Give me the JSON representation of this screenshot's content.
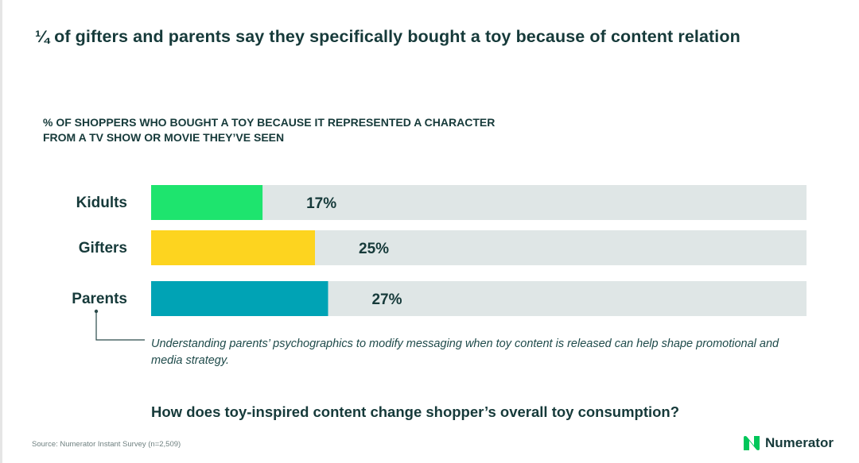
{
  "title": "¼ of gifters and parents say they specifically bought a toy because of content relation",
  "annotation": "Understanding parents’ psychographics to modify messaging when toy content is released can help shape promotional and media strategy.",
  "question": "How does toy-inspired content change shopper’s overall toy consumption?",
  "source": "Source: Numerator Instant Survey (n=2,509)",
  "brand": {
    "name": "Numerator",
    "icon": "numerator-logo-icon",
    "color": "#00c65a"
  },
  "colors": {
    "track": "#dfe6e6",
    "text": "#163a3a"
  },
  "chart_data": {
    "type": "bar",
    "orientation": "horizontal",
    "title": "% OF SHOPPERS WHO BOUGHT A TOY BECAUSE IT REPRESENTED A CHARACTER FROM A TV SHOW OR MOVIE THEY’VE SEEN",
    "categories": [
      "Kidults",
      "Gifters",
      "Parents"
    ],
    "values": [
      17,
      25,
      27
    ],
    "value_labels": [
      "17%",
      "25%",
      "27%"
    ],
    "colors": [
      "#1ee46e",
      "#fdd41f",
      "#00a3b5"
    ],
    "xlim": [
      0,
      100
    ],
    "grid": false,
    "legend": "none"
  }
}
